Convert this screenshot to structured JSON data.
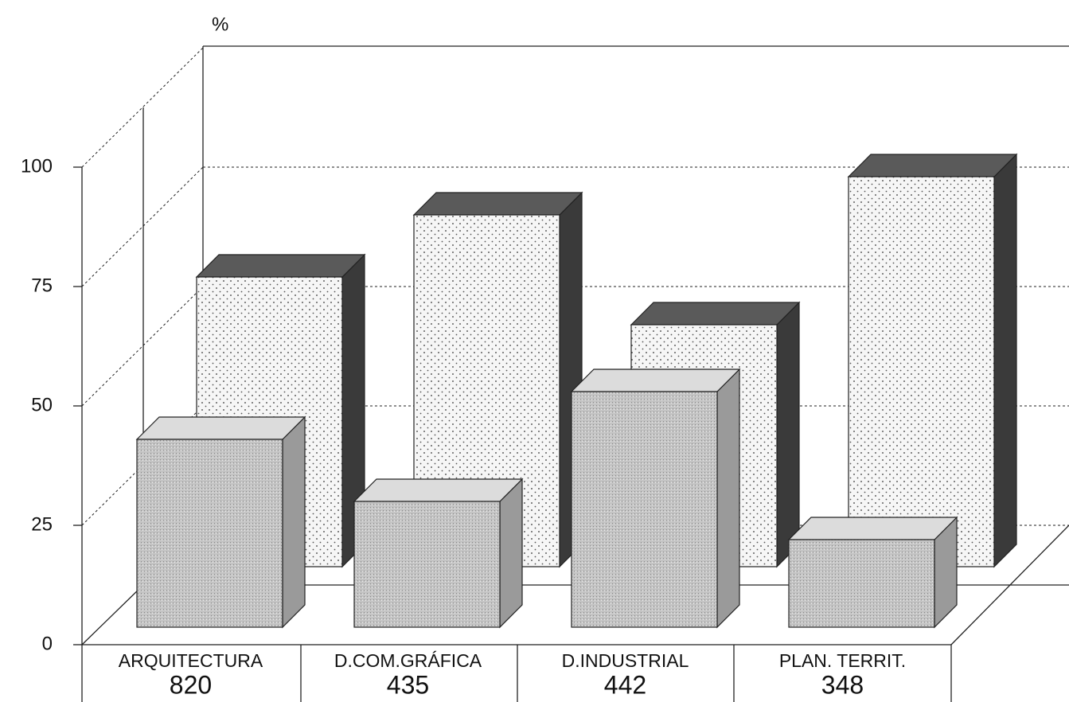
{
  "chart_data": {
    "type": "bar3d",
    "y_label": "%",
    "categories": [
      "ARQUITECTURA",
      "D.COM.GRÁFICA",
      "D.INDUSTRIAL",
      "PLAN. TERRIT."
    ],
    "category_counts": [
      820,
      435,
      442,
      348
    ],
    "series": [
      {
        "color": "#c4c4c4",
        "values": [
          43,
          30,
          53,
          22
        ]
      },
      {
        "color": "#f4f4f4",
        "values": [
          77,
          90,
          67,
          98
        ]
      }
    ],
    "ylim": [
      0,
      100
    ],
    "yticks": [
      0,
      25,
      50,
      75,
      100
    ],
    "grid": true
  }
}
